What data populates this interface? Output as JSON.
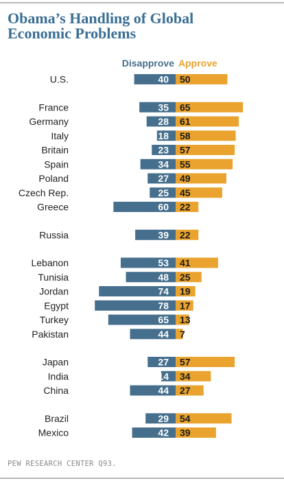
{
  "title_line1": "Obama’s Handling of Global",
  "title_line2": "Economic Problems",
  "legend": {
    "disapprove": "Disapprove",
    "approve": "Approve",
    "disapprove_color": "#456f8d",
    "approve_color": "#e9a32e"
  },
  "source": "PEW RESEARCH CENTER Q93.",
  "chart_data": {
    "type": "bar",
    "orientation": "horizontal-diverging",
    "categories": [
      "U.S.",
      "France",
      "Germany",
      "Italy",
      "Britain",
      "Spain",
      "Poland",
      "Czech Rep.",
      "Greece",
      "Russia",
      "Lebanon",
      "Tunisia",
      "Jordan",
      "Egypt",
      "Turkey",
      "Pakistan",
      "Japan",
      "India",
      "China",
      "Brazil",
      "Mexico"
    ],
    "groups": [
      [
        "U.S."
      ],
      [
        "France",
        "Germany",
        "Italy",
        "Britain",
        "Spain",
        "Poland",
        "Czech Rep.",
        "Greece"
      ],
      [
        "Russia"
      ],
      [
        "Lebanon",
        "Tunisia",
        "Jordan",
        "Egypt",
        "Turkey",
        "Pakistan"
      ],
      [
        "Japan",
        "India",
        "China"
      ],
      [
        "Brazil",
        "Mexico"
      ]
    ],
    "series": [
      {
        "name": "Disapprove",
        "values": [
          40,
          35,
          28,
          18,
          23,
          34,
          27,
          25,
          60,
          39,
          53,
          48,
          74,
          78,
          65,
          44,
          27,
          14,
          44,
          29,
          42
        ]
      },
      {
        "name": "Approve",
        "values": [
          50,
          65,
          61,
          58,
          57,
          55,
          49,
          45,
          22,
          22,
          41,
          25,
          19,
          17,
          13,
          7,
          57,
          34,
          27,
          54,
          39
        ]
      }
    ],
    "xlim": [
      0,
      100
    ],
    "grid": false,
    "legend_position": "top"
  }
}
